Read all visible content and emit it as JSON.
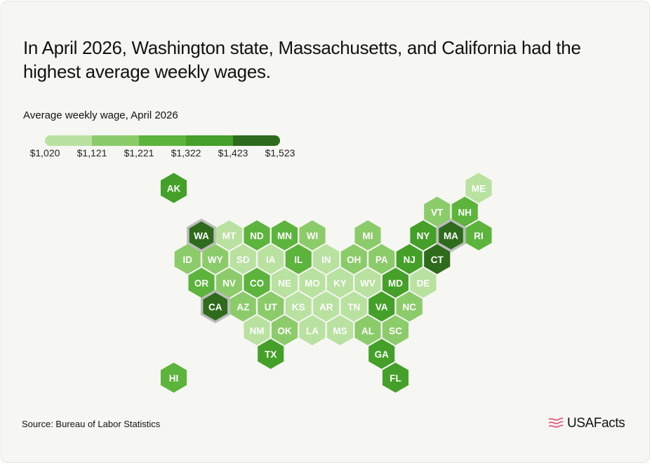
{
  "title": "In April 2026, Washington state, Massachusetts, and California had the highest average weekly wages.",
  "subtitle": "Average weekly wage, April 2026",
  "source": "Source: Bureau of Labor Statistics",
  "brand": "USAFacts",
  "colors": {
    "bin1": "#b9e1a0",
    "bin2": "#8ccb6a",
    "bin3": "#5cb43c",
    "bin4": "#44a028",
    "bin5": "#2e6b1c",
    "highlight_border": "#bbbbbb",
    "brand_accent": "#e05b7f"
  },
  "legend": {
    "ticks": [
      "$1,020",
      "$1,121",
      "$1,221",
      "$1,322",
      "$1,423",
      "$1,523"
    ]
  },
  "chart_data": {
    "type": "hex-tile-choropleth",
    "title": "In April 2026, Washington state, Massachusetts, and California had the highest average weekly wages.",
    "legend_title": "Average weekly wage, April 2026",
    "bins": [
      "$1,020",
      "$1,121",
      "$1,221",
      "$1,322",
      "$1,423",
      "$1,523"
    ],
    "highlighted": [
      "WA",
      "MA",
      "CA"
    ],
    "states": [
      {
        "abbr": "AK",
        "bin": 4
      },
      {
        "abbr": "ME",
        "bin": 1
      },
      {
        "abbr": "VT",
        "bin": 2
      },
      {
        "abbr": "NH",
        "bin": 3
      },
      {
        "abbr": "WA",
        "bin": 5
      },
      {
        "abbr": "MT",
        "bin": 1
      },
      {
        "abbr": "ND",
        "bin": 3
      },
      {
        "abbr": "MN",
        "bin": 3
      },
      {
        "abbr": "WI",
        "bin": 2
      },
      {
        "abbr": "MI",
        "bin": 2
      },
      {
        "abbr": "NY",
        "bin": 4
      },
      {
        "abbr": "MA",
        "bin": 5
      },
      {
        "abbr": "RI",
        "bin": 3
      },
      {
        "abbr": "ID",
        "bin": 2
      },
      {
        "abbr": "WY",
        "bin": 2
      },
      {
        "abbr": "SD",
        "bin": 1
      },
      {
        "abbr": "IA",
        "bin": 1
      },
      {
        "abbr": "IL",
        "bin": 3
      },
      {
        "abbr": "IN",
        "bin": 1
      },
      {
        "abbr": "OH",
        "bin": 2
      },
      {
        "abbr": "PA",
        "bin": 2
      },
      {
        "abbr": "NJ",
        "bin": 4
      },
      {
        "abbr": "CT",
        "bin": 5
      },
      {
        "abbr": "OR",
        "bin": 3
      },
      {
        "abbr": "NV",
        "bin": 2
      },
      {
        "abbr": "CO",
        "bin": 3
      },
      {
        "abbr": "NE",
        "bin": 1
      },
      {
        "abbr": "MO",
        "bin": 1
      },
      {
        "abbr": "KY",
        "bin": 1
      },
      {
        "abbr": "WV",
        "bin": 1
      },
      {
        "abbr": "MD",
        "bin": 4
      },
      {
        "abbr": "DE",
        "bin": 1
      },
      {
        "abbr": "CA",
        "bin": 5
      },
      {
        "abbr": "AZ",
        "bin": 2
      },
      {
        "abbr": "UT",
        "bin": 2
      },
      {
        "abbr": "KS",
        "bin": 1
      },
      {
        "abbr": "AR",
        "bin": 1
      },
      {
        "abbr": "TN",
        "bin": 1
      },
      {
        "abbr": "VA",
        "bin": 4
      },
      {
        "abbr": "NC",
        "bin": 2
      },
      {
        "abbr": "NM",
        "bin": 1
      },
      {
        "abbr": "OK",
        "bin": 2
      },
      {
        "abbr": "LA",
        "bin": 1
      },
      {
        "abbr": "MS",
        "bin": 1
      },
      {
        "abbr": "AL",
        "bin": 2
      },
      {
        "abbr": "SC",
        "bin": 2
      },
      {
        "abbr": "TX",
        "bin": 4
      },
      {
        "abbr": "GA",
        "bin": 4
      },
      {
        "abbr": "HI",
        "bin": 3
      },
      {
        "abbr": "FL",
        "bin": 4
      }
    ]
  }
}
